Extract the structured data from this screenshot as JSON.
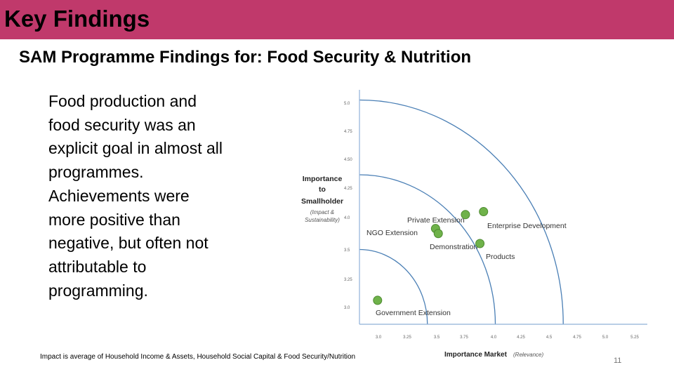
{
  "slide": {
    "title": "Key Findings",
    "subtitle": "SAM Programme Findings for: Food Security & Nutrition",
    "body_lines": [
      "Food production and",
      "food security was an",
      "explicit goal in almost all",
      "programmes.",
      "Achievements were",
      "more positive than",
      "negative, but often not",
      "attributable to",
      "programming."
    ],
    "footnote": "Impact is average of Household Income & Assets, Household Social Capital & Food Security/Nutrition",
    "page_number": "11",
    "colors": {
      "title_bar": "#c0396b",
      "points": "#6fb24a",
      "arcs": "#4a7fb5",
      "axes": "#8fb0d8"
    }
  },
  "chart_data": {
    "type": "scatter",
    "x_axis": {
      "title": "Importance Market",
      "subtitle": "(Relevance)",
      "ticks": [
        "3.0",
        "3.25",
        "3.5",
        "3.75",
        "4.0",
        "4.25",
        "4.5",
        "4.75",
        "5.0",
        "5.25"
      ],
      "range": [
        2.75,
        5.25
      ]
    },
    "y_axis": {
      "title_lines": [
        "Importance",
        "to",
        "Smallholder"
      ],
      "subtitle_lines": [
        "(Impact &",
        "Sustainability)"
      ],
      "ticks": [
        "5.0",
        "4.75",
        "4.50",
        "4.25",
        "4.0",
        "3.5",
        "3.25",
        "3.0"
      ],
      "range": [
        2.75,
        5.25
      ]
    },
    "arc_radii": [
      0.75,
      1.5,
      2.25
    ],
    "points": [
      {
        "label": "Private Extension",
        "x": 3.92,
        "y": 3.85
      },
      {
        "label": "Enterprise Development",
        "x": 4.12,
        "y": 3.88
      },
      {
        "label": "NGO Extension",
        "x": 3.59,
        "y": 3.71
      },
      {
        "label": "Demonstration",
        "x": 3.62,
        "y": 3.66
      },
      {
        "label": "Products",
        "x": 4.08,
        "y": 3.56
      },
      {
        "label": "Government Extension",
        "x": 2.95,
        "y": 2.99
      }
    ]
  }
}
